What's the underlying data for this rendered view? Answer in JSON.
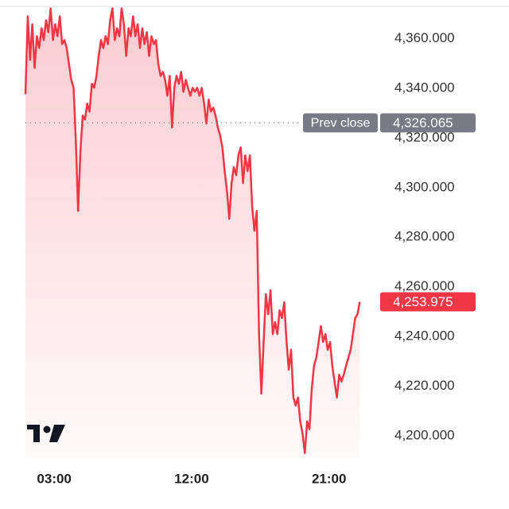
{
  "chart_data": {
    "type": "area",
    "x": [
      67,
      76,
      85,
      94,
      103,
      112,
      121,
      130,
      139,
      148,
      157,
      166,
      175,
      184,
      193,
      202,
      211,
      220,
      229,
      238,
      247,
      256,
      265,
      274,
      283,
      292,
      301,
      310,
      319,
      328,
      337,
      346,
      355,
      364,
      373,
      382,
      391,
      400,
      409,
      418,
      427,
      436,
      445,
      454,
      463,
      472,
      481,
      490,
      499,
      508,
      517,
      526,
      535,
      544,
      553,
      562,
      571,
      580,
      589,
      598,
      607,
      616,
      625,
      634,
      643,
      652,
      661,
      670,
      679,
      688,
      697,
      706,
      715,
      724,
      733,
      742,
      751,
      760,
      769,
      778,
      787,
      796,
      805,
      814,
      823,
      832,
      841,
      850,
      859,
      868,
      877,
      886,
      895,
      904,
      913,
      922,
      931,
      940,
      949,
      958,
      967,
      976,
      985,
      994,
      1003,
      1012,
      1021,
      1030,
      1039,
      1048,
      1057,
      1066,
      1075,
      1084,
      1093,
      1102,
      1111,
      1120,
      1129,
      1138,
      1147,
      1156,
      1165,
      1174,
      1183,
      1192,
      1201,
      1210,
      1219,
      1228,
      1237,
      1246,
      1255,
      1264,
      1273,
      1282,
      1291,
      1300,
      1309,
      1318,
      1327,
      1336,
      1345,
      1354,
      1363,
      1372,
      1381
    ],
    "series": [
      {
        "color": "#f23645",
        "values": [
          4337.6,
          4369.0,
          4351.4,
          4365.8,
          4348.2,
          4361.0,
          4356.2,
          4364.2,
          4359.4,
          4367.4,
          4362.6,
          4372.2,
          4359.4,
          4365.8,
          4361.0,
          4369.0,
          4357.8,
          4359.4,
          4356.2,
          4349.8,
          4343.4,
          4340.2,
          4319.4,
          4290.6,
          4314.6,
          4329.0,
          4327.4,
          4333.8,
          4330.6,
          4341.8,
          4340.2,
          4345.0,
          4353.0,
          4359.4,
          4356.2,
          4361.0,
          4357.8,
          4367.4,
          4372.2,
          4359.4,
          4364.2,
          4361.0,
          4372.2,
          4365.8,
          4353.0,
          4364.2,
          4361.0,
          4369.0,
          4361.0,
          4365.8,
          4356.2,
          4364.2,
          4357.8,
          4362.6,
          4353.0,
          4361.0,
          4357.8,
          4359.4,
          4349.8,
          4345.0,
          4346.6,
          4343.4,
          4337.0,
          4345.0,
          4324.2,
          4340.2,
          4345.0,
          4341.8,
          4346.6,
          4338.6,
          4343.4,
          4340.2,
          4337.0,
          4340.2,
          4338.6,
          4340.2,
          4337.0,
          4340.2,
          4333.8,
          4325.8,
          4335.4,
          4330.6,
          4332.2,
          4329.0,
          4324.2,
          4321.0,
          4316.2,
          4306.6,
          4298.6,
          4287.4,
          4301.8,
          4308.2,
          4305.0,
          4313.0,
          4316.2,
          4301.8,
          4313.0,
          4306.6,
          4313.0,
          4292.2,
          4282.6,
          4290.6,
          4241.0,
          4217.0,
          4237.8,
          4257.0,
          4249.0,
          4258.6,
          4241.0,
          4245.8,
          4241.0,
          4250.6,
          4247.4,
          4253.8,
          4237.8,
          4226.6,
          4234.6,
          4215.4,
          4212.2,
          4215.4,
          4205.8,
          4201.0,
          4193.0,
          4205.8,
          4202.6,
          4218.6,
          4228.2,
          4231.4,
          4237.8,
          4244.2,
          4237.8,
          4241.0,
          4234.6,
          4237.8,
          4228.2,
          4221.8,
          4215.4,
          4224.6,
          4221.8,
          4224.6,
          4228.2,
          4231.4,
          4234.6,
          4241.0,
          4247.4,
          4249.0,
          4253.975
        ],
        "last_label": "4,253.975"
      }
    ],
    "xlim": [
      67,
      1436
    ],
    "xticks": [
      {
        "value": 180,
        "label": "03:00"
      },
      {
        "value": 720,
        "label": "12:00"
      },
      {
        "value": 1260,
        "label": "21:00"
      }
    ],
    "ylim": [
      4191,
      4373
    ],
    "yticks": [
      {
        "value": 4200,
        "label": "4,200.000"
      },
      {
        "value": 4220,
        "label": "4,220.000"
      },
      {
        "value": 4240,
        "label": "4,240.000"
      },
      {
        "value": 4260,
        "label": "4,260.000"
      },
      {
        "value": 4280,
        "label": "4,280.000"
      },
      {
        "value": 4300,
        "label": "4,300.000"
      },
      {
        "value": 4320,
        "label": "4,320.000"
      },
      {
        "value": 4340,
        "label": "4,340.000"
      },
      {
        "value": 4360,
        "label": "4,360.000"
      }
    ],
    "prev_close": {
      "label": "Prev close",
      "value": 4326.065,
      "value_label": "4,326.065"
    }
  }
}
